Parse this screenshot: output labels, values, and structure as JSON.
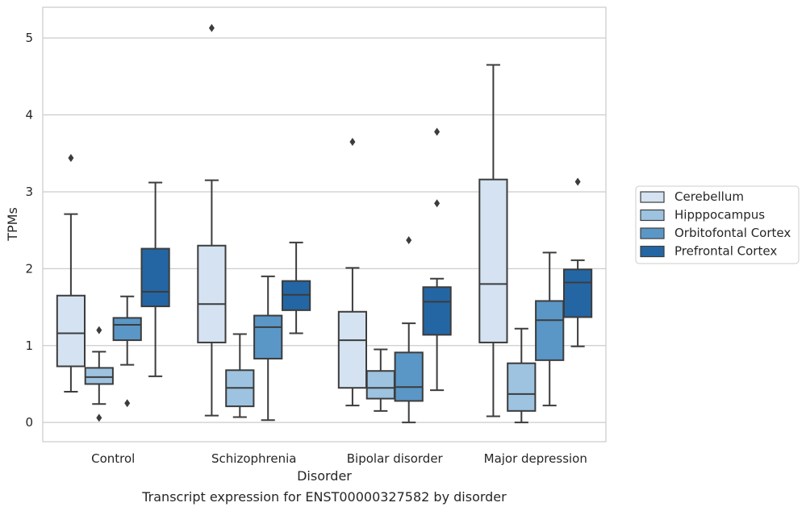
{
  "chart_data": {
    "type": "box",
    "title": "Transcript expression for ENST00000327582 by disorder",
    "xlabel": "Disorder",
    "ylabel": "TPMs",
    "ylim": [
      -0.25,
      5.4
    ],
    "yticks": [
      0,
      1,
      2,
      3,
      4,
      5
    ],
    "grid": true,
    "legend_position": "right",
    "categories": [
      "Control",
      "Schizophrenia",
      "Bipolar disorder",
      "Major depression"
    ],
    "series": [
      {
        "name": "Cerebellum",
        "color": "#d4e2f1",
        "boxes": [
          {
            "whisker_low": 0.4,
            "q1": 0.73,
            "median": 1.16,
            "q3": 1.65,
            "whisker_high": 2.71,
            "outliers": [
              3.44
            ]
          },
          {
            "whisker_low": 0.09,
            "q1": 1.04,
            "median": 1.54,
            "q3": 2.3,
            "whisker_high": 3.15,
            "outliers": [
              5.13
            ]
          },
          {
            "whisker_low": 0.22,
            "q1": 0.45,
            "median": 1.07,
            "q3": 1.44,
            "whisker_high": 2.01,
            "outliers": [
              3.65
            ]
          },
          {
            "whisker_low": 0.08,
            "q1": 1.04,
            "median": 1.8,
            "q3": 3.16,
            "whisker_high": 4.65,
            "outliers": []
          }
        ]
      },
      {
        "name": "Hipppocampus",
        "color": "#9dc3e0",
        "boxes": [
          {
            "whisker_low": 0.24,
            "q1": 0.5,
            "median": 0.59,
            "q3": 0.71,
            "whisker_high": 0.92,
            "outliers": [
              1.2,
              0.06
            ]
          },
          {
            "whisker_low": 0.07,
            "q1": 0.21,
            "median": 0.45,
            "q3": 0.68,
            "whisker_high": 1.15,
            "outliers": []
          },
          {
            "whisker_low": 0.15,
            "q1": 0.31,
            "median": 0.45,
            "q3": 0.67,
            "whisker_high": 0.95,
            "outliers": []
          },
          {
            "whisker_low": 0.0,
            "q1": 0.15,
            "median": 0.37,
            "q3": 0.77,
            "whisker_high": 1.22,
            "outliers": []
          }
        ]
      },
      {
        "name": "Orbitofontal Cortex",
        "color": "#5a97c7",
        "boxes": [
          {
            "whisker_low": 0.75,
            "q1": 1.07,
            "median": 1.27,
            "q3": 1.36,
            "whisker_high": 1.64,
            "outliers": [
              0.25
            ]
          },
          {
            "whisker_low": 0.03,
            "q1": 0.83,
            "median": 1.24,
            "q3": 1.39,
            "whisker_high": 1.9,
            "outliers": []
          },
          {
            "whisker_low": 0.0,
            "q1": 0.28,
            "median": 0.46,
            "q3": 0.91,
            "whisker_high": 1.29,
            "outliers": [
              2.37
            ]
          },
          {
            "whisker_low": 0.22,
            "q1": 0.81,
            "median": 1.33,
            "q3": 1.58,
            "whisker_high": 2.21,
            "outliers": []
          }
        ]
      },
      {
        "name": "Prefrontal Cortex",
        "color": "#2466a3",
        "boxes": [
          {
            "whisker_low": 0.6,
            "q1": 1.51,
            "median": 1.7,
            "q3": 2.26,
            "whisker_high": 3.12,
            "outliers": []
          },
          {
            "whisker_low": 1.16,
            "q1": 1.46,
            "median": 1.66,
            "q3": 1.84,
            "whisker_high": 2.34,
            "outliers": []
          },
          {
            "whisker_low": 0.42,
            "q1": 1.14,
            "median": 1.57,
            "q3": 1.76,
            "whisker_high": 1.87,
            "outliers": [
              3.78,
              2.85
            ]
          },
          {
            "whisker_low": 0.99,
            "q1": 1.37,
            "median": 1.82,
            "q3": 1.99,
            "whisker_high": 2.11,
            "outliers": [
              3.13
            ]
          }
        ]
      }
    ]
  }
}
